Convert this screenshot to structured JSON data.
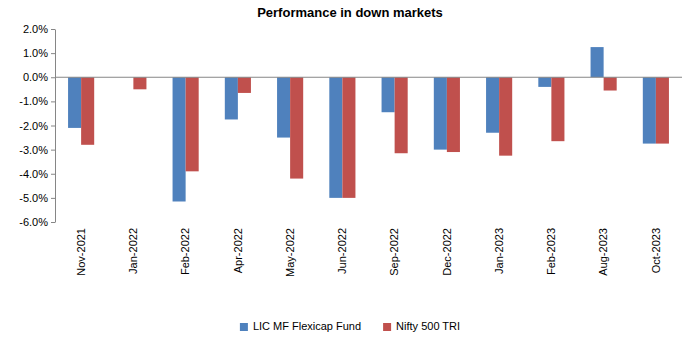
{
  "chart_data": {
    "type": "bar",
    "title": "Performance in down markets",
    "categories": [
      "Nov-2021",
      "Jan-2022",
      "Feb-2022",
      "Apr-2022",
      "May-2022",
      "Jun-2022",
      "Sep-2022",
      "Dec-2022",
      "Jan-2023",
      "Feb-2023",
      "Aug-2023",
      "Oct-2023"
    ],
    "series": [
      {
        "name": "LIC MF Flexicap Fund",
        "color": "#4f81bd",
        "values": [
          -2.1,
          0,
          -5.15,
          -1.75,
          -2.5,
          -5.0,
          -1.45,
          -3.0,
          -2.3,
          -0.4,
          1.25,
          -2.75
        ]
      },
      {
        "name": "Nifty 500 TRI",
        "color": "#c0504d",
        "values": [
          -2.8,
          -0.5,
          -3.9,
          -0.65,
          -4.2,
          -5.0,
          -3.15,
          -3.1,
          -3.25,
          -2.65,
          -0.55,
          -2.75
        ]
      }
    ],
    "ylim": [
      -6,
      2
    ],
    "yticks": [
      {
        "value": -6,
        "label": "-6.0%"
      },
      {
        "value": -5,
        "label": "-5.0%"
      },
      {
        "value": -4,
        "label": "-4.0%"
      },
      {
        "value": -3,
        "label": "-3.0%"
      },
      {
        "value": -2,
        "label": "-2.0%"
      },
      {
        "value": -1,
        "label": "-1.0%"
      },
      {
        "value": 0,
        "label": "0.0%"
      },
      {
        "value": 1,
        "label": "1.0%"
      },
      {
        "value": 2,
        "label": "2.0%"
      }
    ],
    "grid": false,
    "legend": "bottom"
  }
}
